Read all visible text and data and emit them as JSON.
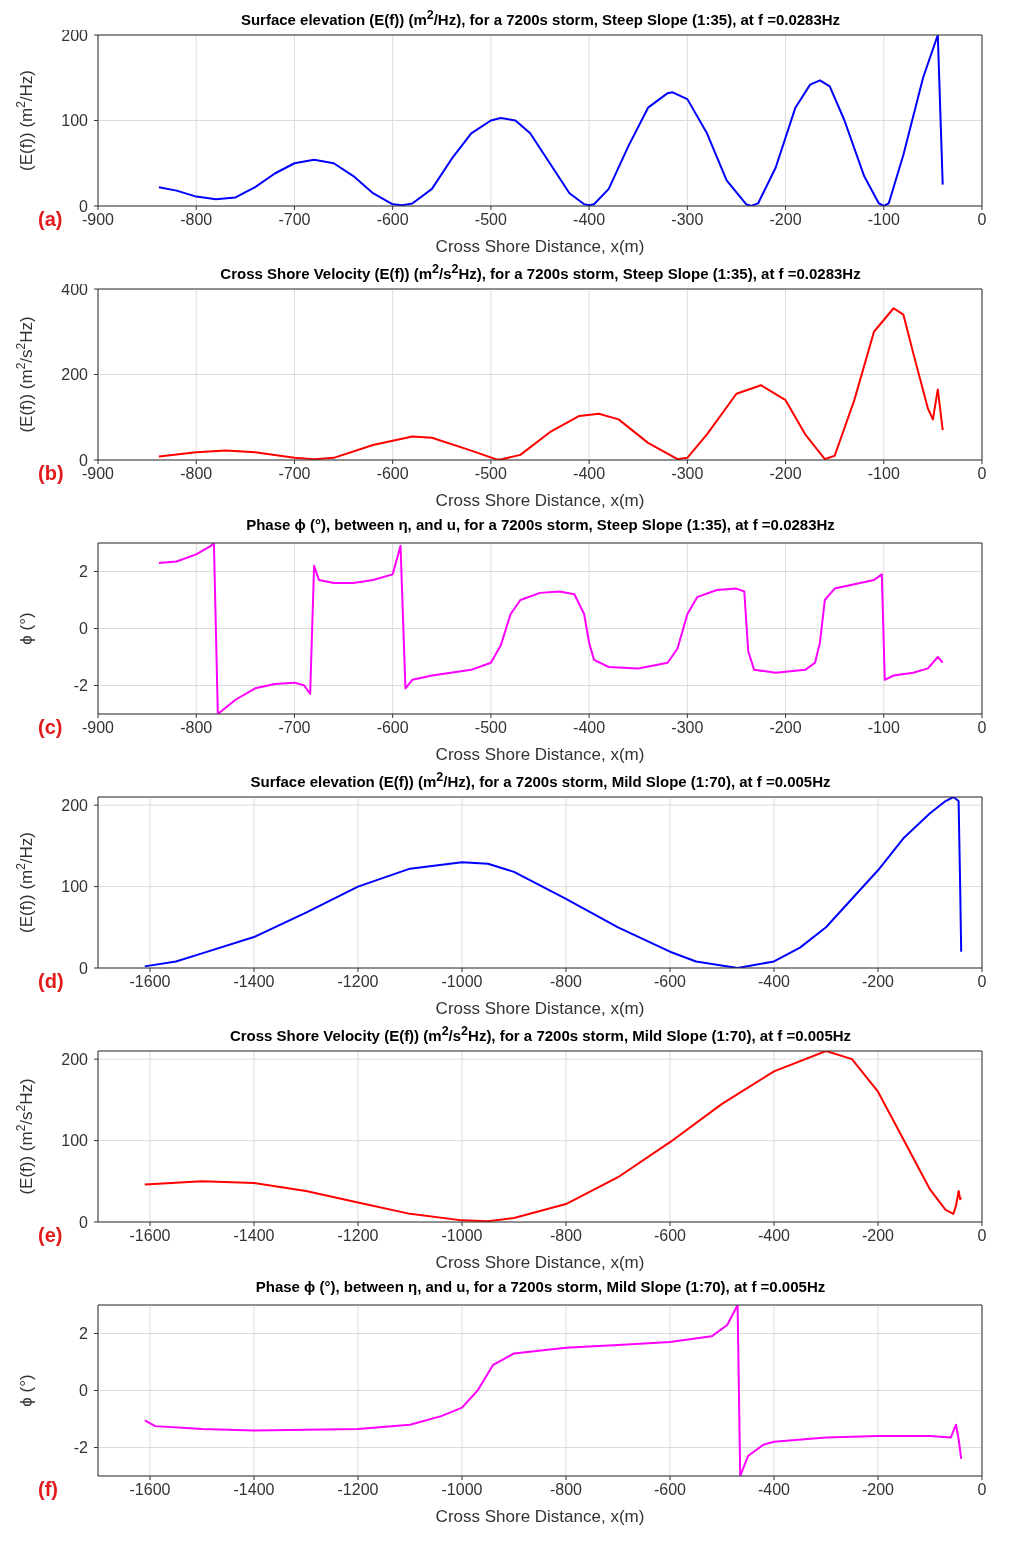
{
  "chart_data": [
    {
      "type": "line",
      "title": "Surface elevation (E(f)) (m$^{2}$/Hz), for a 7200s storm, Steep Slope (1:35), at f =0.0283Hz",
      "xlabel": "Cross Shore Distance, x(m)",
      "ylabel": "(E(f)) (m$^{2}$/Hz)",
      "annotations": [
        "(a)"
      ],
      "xlim": [
        -900,
        0
      ],
      "xticks": [
        -900,
        -800,
        -700,
        -600,
        -500,
        -400,
        -300,
        -200,
        -100,
        0
      ],
      "ylim": [
        0,
        200
      ],
      "yticks": [
        0,
        100,
        200
      ],
      "grid": true,
      "series": [
        {
          "color": "#0000ff",
          "x": [
            -838,
            -820,
            -800,
            -780,
            -760,
            -740,
            -720,
            -700,
            -680,
            -660,
            -640,
            -620,
            -600,
            -590,
            -580,
            -560,
            -540,
            -520,
            -500,
            -490,
            -475,
            -460,
            -440,
            -420,
            -405,
            -400,
            -395,
            -380,
            -360,
            -340,
            -320,
            -315,
            -300,
            -280,
            -260,
            -240,
            -235,
            -228,
            -210,
            -190,
            -175,
            -165,
            -155,
            -140,
            -120,
            -105,
            -100,
            -95,
            -80,
            -60,
            -45,
            -40
          ],
          "values": [
            22,
            18,
            11,
            8,
            10,
            22,
            38,
            50,
            54,
            50,
            35,
            15,
            2,
            1,
            3,
            20,
            55,
            85,
            100,
            103,
            100,
            85,
            50,
            15,
            2,
            1,
            2,
            20,
            70,
            115,
            132,
            133,
            125,
            85,
            30,
            2,
            0,
            3,
            45,
            115,
            142,
            147,
            140,
            100,
            35,
            3,
            0,
            3,
            60,
            150,
            200,
            25
          ]
        }
      ]
    },
    {
      "type": "line",
      "title": "Cross Shore Velocity (E(f)) (m$^{2}$/s$^{2}$Hz), for a 7200s storm, Steep Slope (1:35), at f =0.0283Hz",
      "xlabel": "Cross Shore Distance, x(m)",
      "ylabel": "(E(f)) (m$^{2}$/s$^{2}$Hz)",
      "annotations": [
        "(b)"
      ],
      "xlim": [
        -900,
        0
      ],
      "xticks": [
        -900,
        -800,
        -700,
        -600,
        -500,
        -400,
        -300,
        -200,
        -100,
        0
      ],
      "ylim": [
        0,
        400
      ],
      "yticks": [
        0,
        200,
        400
      ],
      "grid": true,
      "series": [
        {
          "color": "#ff0000",
          "x": [
            -838,
            -800,
            -770,
            -740,
            -700,
            -680,
            -660,
            -620,
            -580,
            -560,
            -520,
            -495,
            -490,
            -470,
            -440,
            -410,
            -390,
            -370,
            -340,
            -310,
            -300,
            -280,
            -250,
            -225,
            -200,
            -180,
            -160,
            -150,
            -130,
            -110,
            -90,
            -80,
            -70,
            -55,
            -50,
            -45,
            -40
          ],
          "values": [
            8,
            18,
            22,
            18,
            5,
            2,
            5,
            35,
            55,
            52,
            22,
            2,
            1,
            12,
            65,
            103,
            108,
            95,
            40,
            2,
            5,
            60,
            155,
            175,
            140,
            60,
            2,
            10,
            140,
            300,
            355,
            340,
            250,
            120,
            95,
            165,
            70
          ]
        }
      ]
    },
    {
      "type": "line",
      "title": "Phase ϕ (°), between η, and u, for a 7200s storm, Steep Slope (1:35), at f =0.0283Hz",
      "xlabel": "Cross Shore Distance, x(m)",
      "ylabel": "ϕ (°)",
      "annotations": [
        "(c)"
      ],
      "xlim": [
        -900,
        0
      ],
      "xticks": [
        -900,
        -800,
        -700,
        -600,
        -500,
        -400,
        -300,
        -200,
        -100,
        0
      ],
      "ylim": [
        -3,
        3
      ],
      "yticks": [
        -2,
        0,
        2
      ],
      "grid": true,
      "series": [
        {
          "color": "#ff00ff",
          "x": [
            -838,
            -820,
            -800,
            -785,
            -782,
            -778,
            -760,
            -740,
            -720,
            -700,
            -690,
            -684,
            -680,
            -675,
            -660,
            -640,
            -620,
            -600,
            -592,
            -587,
            -580,
            -560,
            -520,
            -500,
            -490,
            -480,
            -470,
            -450,
            -430,
            -415,
            -405,
            -400,
            -395,
            -380,
            -350,
            -320,
            -310,
            -300,
            -290,
            -270,
            -250,
            -242,
            -238,
            -232,
            -210,
            -180,
            -170,
            -165,
            -160,
            -150,
            -130,
            -110,
            -102,
            -99,
            -90,
            -70,
            -55,
            -45,
            -40
          ],
          "values": [
            2.3,
            2.35,
            2.6,
            2.9,
            3.0,
            -3.0,
            -2.5,
            -2.1,
            -1.95,
            -1.9,
            -2.0,
            -2.3,
            2.2,
            1.7,
            1.6,
            1.6,
            1.7,
            1.9,
            2.9,
            -2.1,
            -1.8,
            -1.65,
            -1.45,
            -1.2,
            -0.6,
            0.5,
            1.0,
            1.25,
            1.3,
            1.2,
            0.5,
            -0.5,
            -1.1,
            -1.35,
            -1.4,
            -1.2,
            -0.7,
            0.5,
            1.1,
            1.35,
            1.4,
            1.3,
            -0.8,
            -1.45,
            -1.55,
            -1.45,
            -1.2,
            -0.5,
            1.0,
            1.4,
            1.55,
            1.7,
            1.9,
            -1.8,
            -1.65,
            -1.55,
            -1.4,
            -1.0,
            -1.2
          ]
        }
      ]
    },
    {
      "type": "line",
      "title": "Surface elevation (E(f)) (m$^{2}$/Hz), for a 7200s storm, Mild Slope (1:70), at f =0.005Hz",
      "xlabel": "Cross Shore Distance, x(m)",
      "ylabel": "(E(f)) (m$^{2}$/Hz)",
      "annotations": [
        "(d)"
      ],
      "xlim": [
        -1700,
        0
      ],
      "xticks": [
        -1600,
        -1400,
        -1200,
        -1000,
        -800,
        -600,
        -400,
        -200,
        0
      ],
      "ylim": [
        0,
        210
      ],
      "yticks": [
        0,
        100,
        200
      ],
      "grid": true,
      "series": [
        {
          "color": "#0000ff",
          "x": [
            -1610,
            -1550,
            -1500,
            -1400,
            -1300,
            -1200,
            -1100,
            -1000,
            -950,
            -900,
            -800,
            -700,
            -600,
            -550,
            -470,
            -400,
            -350,
            -300,
            -250,
            -200,
            -150,
            -100,
            -70,
            -55,
            -45,
            -42,
            -40
          ],
          "values": [
            2,
            8,
            18,
            38,
            68,
            100,
            122,
            130,
            128,
            118,
            85,
            50,
            20,
            8,
            0,
            8,
            25,
            50,
            85,
            120,
            160,
            190,
            205,
            210,
            205,
            100,
            20
          ]
        }
      ]
    },
    {
      "type": "line",
      "title": "Cross Shore Velocity (E(f)) (m$^{2}$/s$^{2}$Hz), for a 7200s storm, Mild Slope (1:70), at f =0.005Hz",
      "xlabel": "Cross Shore Distance, x(m)",
      "ylabel": "(E(f)) (m$^{2}$/s$^{2}$Hz)",
      "annotations": [
        "(e)"
      ],
      "xlim": [
        -1700,
        0
      ],
      "xticks": [
        -1600,
        -1400,
        -1200,
        -1000,
        -800,
        -600,
        -400,
        -200,
        0
      ],
      "ylim": [
        0,
        210
      ],
      "yticks": [
        0,
        100,
        200
      ],
      "grid": true,
      "series": [
        {
          "color": "#ff0000",
          "x": [
            -1610,
            -1500,
            -1400,
            -1300,
            -1200,
            -1100,
            -1000,
            -950,
            -900,
            -800,
            -700,
            -600,
            -500,
            -400,
            -300,
            -250,
            -200,
            -150,
            -100,
            -70,
            -55,
            -50,
            -45,
            -42,
            -40
          ],
          "values": [
            46,
            50,
            48,
            38,
            24,
            10,
            2,
            1,
            5,
            22,
            55,
            98,
            145,
            185,
            210,
            200,
            160,
            100,
            40,
            15,
            10,
            20,
            38,
            28,
            30
          ]
        }
      ]
    },
    {
      "type": "line",
      "title": "Phase ϕ (°), between η, and u, for a 7200s storm, Mild Slope (1:70), at f =0.005Hz",
      "xlabel": "Cross Shore Distance, x(m)",
      "ylabel": "ϕ (°)",
      "annotations": [
        "(f)"
      ],
      "xlim": [
        -1700,
        0
      ],
      "xticks": [
        -1600,
        -1400,
        -1200,
        -1000,
        -800,
        -600,
        -400,
        -200,
        0
      ],
      "ylim": [
        -3,
        3
      ],
      "yticks": [
        -2,
        0,
        2
      ],
      "grid": true,
      "series": [
        {
          "color": "#ff00ff",
          "x": [
            -1610,
            -1590,
            -1500,
            -1400,
            -1200,
            -1100,
            -1040,
            -1000,
            -970,
            -940,
            -900,
            -800,
            -700,
            -600,
            -520,
            -490,
            -470,
            -465,
            -450,
            -420,
            -400,
            -300,
            -200,
            -100,
            -60,
            -50,
            -45,
            -40
          ],
          "values": [
            -1.05,
            -1.25,
            -1.35,
            -1.4,
            -1.35,
            -1.2,
            -0.9,
            -0.6,
            0.0,
            0.9,
            1.3,
            1.5,
            1.6,
            1.7,
            1.9,
            2.3,
            3.0,
            -3.0,
            -2.3,
            -1.9,
            -1.8,
            -1.65,
            -1.6,
            -1.6,
            -1.65,
            -1.2,
            -1.7,
            -2.4
          ]
        }
      ]
    }
  ]
}
